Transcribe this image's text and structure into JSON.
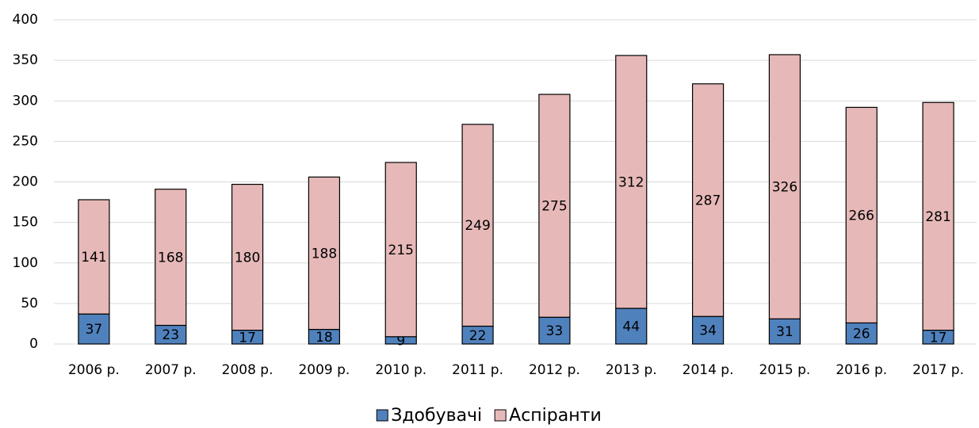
{
  "chart_data": {
    "type": "stacked_bar",
    "categories": [
      "2006 р.",
      "2007 р.",
      "2008 р.",
      "2009 р.",
      "2010 р.",
      "2011 р.",
      "2012 р.",
      "2013 р.",
      "2014 р.",
      "2015 р.",
      "2016 р.",
      "2017 р."
    ],
    "series": [
      {
        "name": "Здобувачі",
        "color": "#4f81bd",
        "values": [
          37,
          23,
          17,
          18,
          9,
          22,
          33,
          44,
          34,
          31,
          26,
          17
        ]
      },
      {
        "name": "Аспіранти",
        "color": "#e6b9b8",
        "values": [
          141,
          168,
          180,
          188,
          215,
          249,
          275,
          312,
          287,
          326,
          266,
          281
        ]
      }
    ],
    "ylim": [
      0,
      400
    ],
    "yticks": [
      0,
      50,
      100,
      150,
      200,
      250,
      300,
      350,
      400
    ],
    "grid": true,
    "legend": "bottom"
  }
}
